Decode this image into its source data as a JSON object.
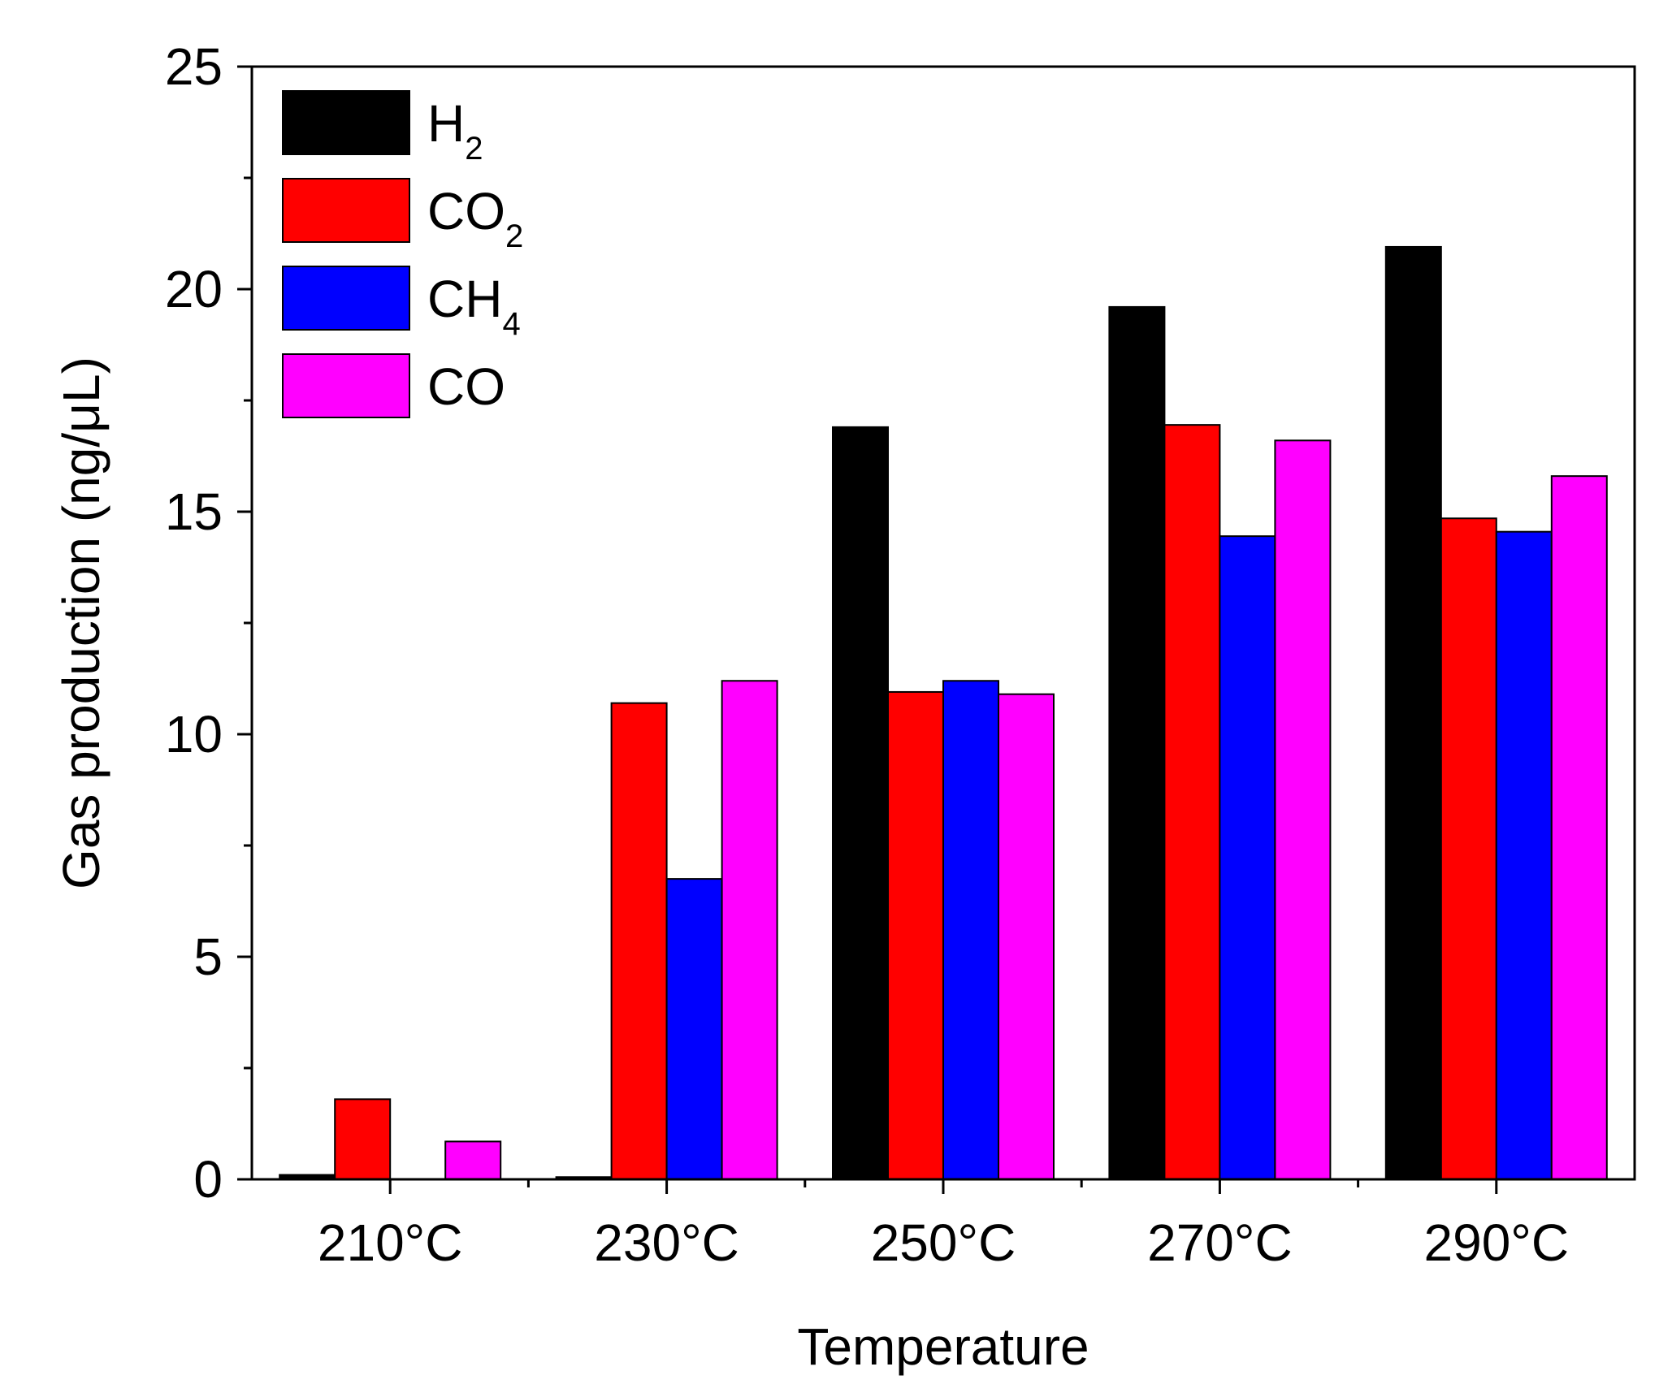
{
  "chart_data": {
    "type": "bar",
    "title": "",
    "xlabel": "Temperature",
    "ylabel": "Gas production (ng/μL)",
    "ylim": [
      0,
      25
    ],
    "yticks": [
      0,
      5,
      10,
      15,
      20,
      25
    ],
    "categories": [
      "210°C",
      "230°C",
      "250°C",
      "270°C",
      "290°C"
    ],
    "legend_position": "top-left",
    "series": [
      {
        "name": "H2",
        "label_main": "H",
        "label_sub": "2",
        "color": "#000000",
        "values": [
          0.1,
          0.05,
          16.9,
          19.6,
          20.95
        ]
      },
      {
        "name": "CO2",
        "label_main": "CO",
        "label_sub": "2",
        "color": "#ff0000",
        "values": [
          1.8,
          10.7,
          10.95,
          16.95,
          14.85
        ]
      },
      {
        "name": "CH4",
        "label_main": "CH",
        "label_sub": "4",
        "color": "#0000ff",
        "values": [
          0,
          6.75,
          11.2,
          14.45,
          14.55
        ]
      },
      {
        "name": "CO",
        "label_main": "CO",
        "label_sub": "",
        "color": "#ff00ff",
        "values": [
          0.85,
          11.2,
          10.9,
          16.6,
          15.8
        ]
      }
    ]
  }
}
